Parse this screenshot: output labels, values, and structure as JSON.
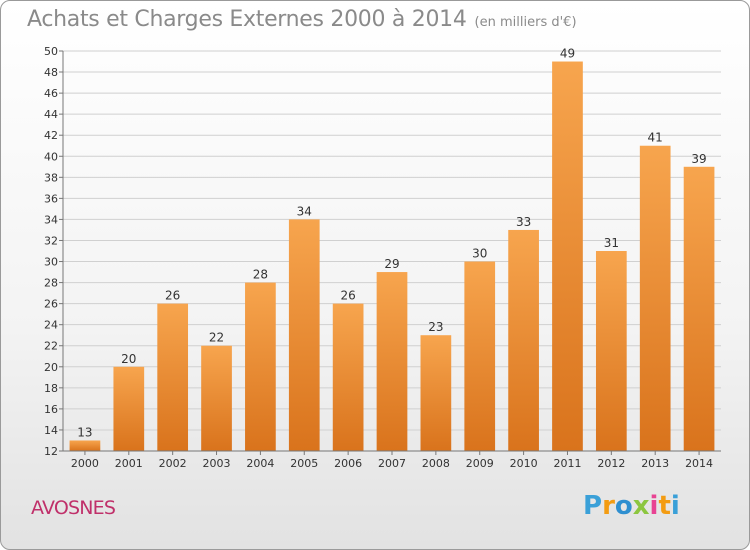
{
  "title": "Achats et Charges Externes 2000 à 2014",
  "unit": "(en milliers d'€)",
  "commune": "AVOSNES",
  "logo": {
    "letters": [
      "P",
      "r",
      "o",
      "x",
      "i",
      "t",
      "i"
    ],
    "colors": [
      "#3aa0d8",
      "#f39c12",
      "#2f8fd0",
      "#8cc63f",
      "#e84393",
      "#f39c12",
      "#3aa0d8"
    ]
  },
  "colors": {
    "bar_light": "#f7a54e",
    "bar_dark": "#d9731c",
    "grid": "#d0d0d0",
    "axis": "#777777"
  },
  "chart_data": {
    "type": "bar",
    "categories": [
      "2000",
      "2001",
      "2002",
      "2003",
      "2004",
      "2005",
      "2006",
      "2007",
      "2008",
      "2009",
      "2010",
      "2011",
      "2012",
      "2013",
      "2014"
    ],
    "values": [
      13,
      20,
      26,
      22,
      28,
      34,
      26,
      29,
      23,
      30,
      33,
      49,
      31,
      41,
      39
    ],
    "value_labels": [
      "13",
      "20",
      "26",
      "22",
      "28",
      "34",
      "26",
      "29",
      "23",
      "30",
      "33",
      "49",
      "31",
      "41",
      "39"
    ],
    "ylim": [
      12,
      50
    ],
    "yticks": [
      12,
      14,
      16,
      18,
      20,
      22,
      24,
      26,
      28,
      30,
      32,
      34,
      36,
      38,
      40,
      42,
      44,
      46,
      48,
      50
    ],
    "ytick_labels": [
      "12",
      "14",
      "16",
      "18",
      "20",
      "22",
      "24",
      "26",
      "28",
      "30",
      "32",
      "34",
      "36",
      "38",
      "40",
      "42",
      "44",
      "46",
      "48",
      "50"
    ],
    "grid": true,
    "xlabel": "",
    "ylabel": ""
  }
}
